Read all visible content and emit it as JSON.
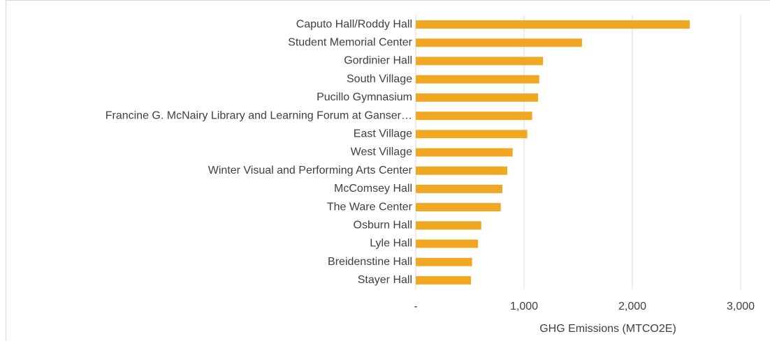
{
  "chart_data": {
    "type": "barh",
    "x_label": "GHG Emissions (MTCO2E)",
    "categories": [
      "Caputo Hall/Roddy Hall",
      "Student Memorial Center",
      "Gordinier Hall",
      "South Village",
      "Pucillo Gymnasium",
      "Francine G. McNairy Library and Learning Forum at Ganser…",
      "East Village",
      "West Village",
      "Winter Visual and Performing Arts Center",
      "McComsey Hall",
      "The Ware Center",
      "Osburn Hall",
      "Lyle Hall",
      "Breidenstine Hall",
      "Stayer Hall"
    ],
    "values": [
      2530,
      1535,
      1175,
      1140,
      1130,
      1075,
      1030,
      895,
      845,
      800,
      785,
      605,
      575,
      520,
      510
    ],
    "color": "#f0a823",
    "xlim": [
      0,
      3000
    ],
    "xticks": [
      {
        "value": 0,
        "label": "-"
      },
      {
        "value": 1000,
        "label": "1,000"
      },
      {
        "value": 2000,
        "label": "2,000"
      },
      {
        "value": 3000,
        "label": "3,000"
      }
    ],
    "grid": true
  }
}
